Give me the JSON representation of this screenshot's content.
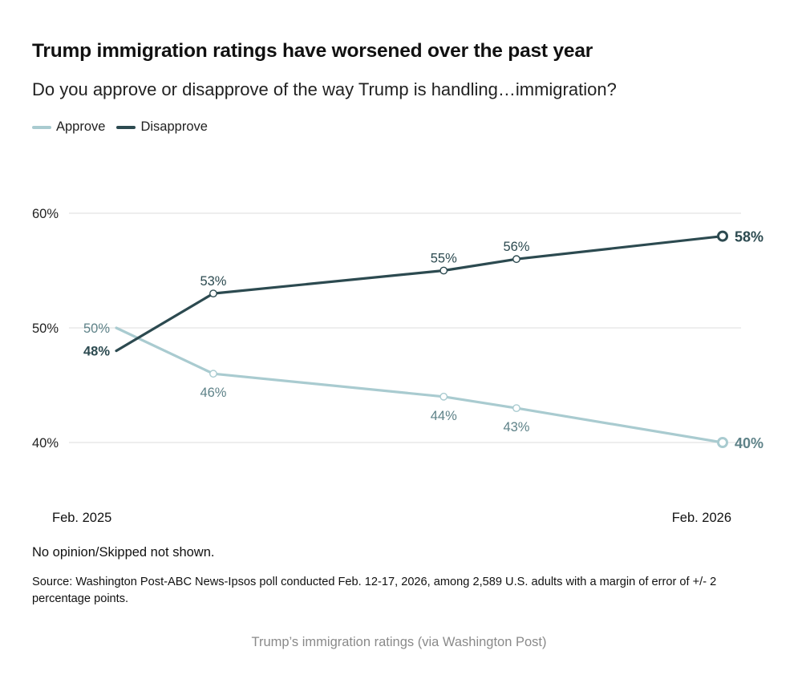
{
  "title": "Trump immigration ratings have worsened over the past year",
  "subtitle": "Do you approve or disapprove of the way Trump is handling…immigration?",
  "legend": [
    {
      "label": "Approve",
      "color": "#a9cbd0"
    },
    {
      "label": "Disapprove",
      "color": "#2c4a50"
    }
  ],
  "note": "No opinion/Skipped not shown.",
  "source": "Source: Washington Post-ABC News-Ipsos poll conducted Feb. 12-17, 2026, among 2,589 U.S. adults with a margin of error of +/- 2 percentage points.",
  "caption": "Trump’s immigration ratings (via Washington Post)",
  "chart_data": {
    "type": "line",
    "title": "Trump immigration ratings have worsened over the past year",
    "x_start_label": "Feb. 2025",
    "x_end_label": "Feb. 2026",
    "x": [
      0,
      1.6,
      5.4,
      6.6,
      10
    ],
    "ylim": [
      40,
      60
    ],
    "yticks": [
      40,
      50,
      60
    ],
    "ytick_labels": [
      "40%",
      "50%",
      "60%"
    ],
    "grid": true,
    "series": [
      {
        "name": "Approve",
        "color": "#a9cbd0",
        "label_color": "#5e8288",
        "values": [
          50,
          46,
          44,
          43,
          40
        ],
        "labels": [
          "50%",
          "46%",
          "44%",
          "43%",
          "40%"
        ],
        "label_positions": [
          "left",
          "below",
          "below",
          "below",
          "right"
        ]
      },
      {
        "name": "Disapprove",
        "color": "#2c4a50",
        "label_color": "#2c4a50",
        "values": [
          48,
          53,
          55,
          56,
          58
        ],
        "labels": [
          "48%",
          "53%",
          "55%",
          "56%",
          "58%"
        ],
        "label_positions": [
          "left",
          "above",
          "above",
          "above",
          "right"
        ]
      }
    ]
  }
}
